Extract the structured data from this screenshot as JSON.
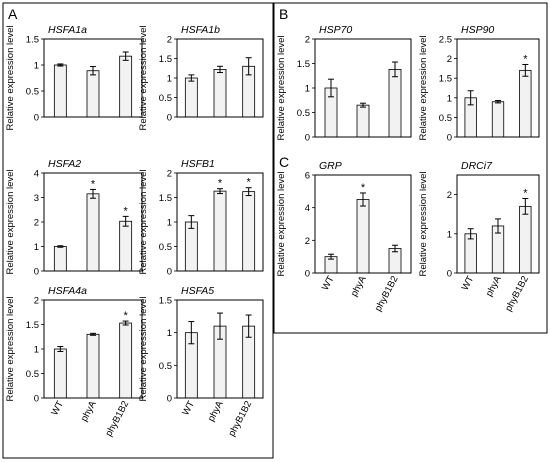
{
  "figure": {
    "panel_labels": [
      "A",
      "B",
      "C"
    ]
  },
  "chart_data": [
    {
      "type": "bar",
      "title": "HSFA1a",
      "ylabel": "Relative expression level",
      "categories": [
        "WT",
        "phyA",
        "phyB1B2"
      ],
      "values": [
        1.0,
        0.89,
        1.17
      ],
      "errors": [
        0.02,
        0.08,
        0.08
      ],
      "significance": [
        "",
        "",
        ""
      ],
      "ylim": [
        0,
        1.5
      ],
      "yticks": [
        "0",
        "0.5",
        "1",
        "1.5"
      ],
      "show_xlabels": false
    },
    {
      "type": "bar",
      "title": "HSFA1b",
      "ylabel": "Relative expression level",
      "categories": [
        "WT",
        "phyA",
        "phyB1B2"
      ],
      "values": [
        1.0,
        1.22,
        1.3
      ],
      "errors": [
        0.08,
        0.08,
        0.22
      ],
      "significance": [
        "",
        "",
        ""
      ],
      "ylim": [
        0,
        2
      ],
      "yticks": [
        "0",
        "0.5",
        "1",
        "1.5",
        "2"
      ],
      "show_xlabels": false
    },
    {
      "type": "bar",
      "title": "HSFA2",
      "ylabel": "Relative expression level",
      "categories": [
        "WT",
        "phyA",
        "phyB1B2"
      ],
      "values": [
        1.0,
        3.15,
        2.03
      ],
      "errors": [
        0.03,
        0.18,
        0.2
      ],
      "significance": [
        "",
        "*",
        "*"
      ],
      "ylim": [
        0,
        4
      ],
      "yticks": [
        "0",
        "1",
        "2",
        "3",
        "4"
      ],
      "show_xlabels": false
    },
    {
      "type": "bar",
      "title": "HSFB1",
      "ylabel": "Relative expression level",
      "categories": [
        "WT",
        "phyA",
        "phyB1B2"
      ],
      "values": [
        1.0,
        1.63,
        1.62
      ],
      "errors": [
        0.13,
        0.05,
        0.08
      ],
      "significance": [
        "",
        "*",
        "*"
      ],
      "ylim": [
        0,
        2
      ],
      "yticks": [
        "0",
        "0.5",
        "1",
        "1.5",
        "2"
      ],
      "show_xlabels": false
    },
    {
      "type": "bar",
      "title": "HSFA4a",
      "ylabel": "Relative expression level",
      "categories": [
        "WT",
        "phyA",
        "phyB1B2"
      ],
      "values": [
        1.0,
        1.3,
        1.53
      ],
      "errors": [
        0.05,
        0.02,
        0.04
      ],
      "significance": [
        "",
        "",
        "*"
      ],
      "ylim": [
        0,
        2
      ],
      "yticks": [
        "0",
        "0.5",
        "1",
        "1.5",
        "2"
      ],
      "show_xlabels": true
    },
    {
      "type": "bar",
      "title": "HSFA5",
      "ylabel": "Relative expression level",
      "categories": [
        "WT",
        "phyA",
        "phyB1B2"
      ],
      "values": [
        1.0,
        1.1,
        1.1
      ],
      "errors": [
        0.17,
        0.2,
        0.17
      ],
      "significance": [
        "",
        "",
        ""
      ],
      "ylim": [
        0,
        1.5
      ],
      "yticks": [
        "0",
        "0.5",
        "1",
        "1.5"
      ],
      "show_xlabels": true
    },
    {
      "type": "bar",
      "title": "HSP70",
      "ylabel": "Relative expression level",
      "categories": [
        "WT",
        "phyA",
        "phyB1B2"
      ],
      "values": [
        1.0,
        0.65,
        1.38
      ],
      "errors": [
        0.18,
        0.04,
        0.15
      ],
      "significance": [
        "",
        "",
        ""
      ],
      "ylim": [
        0,
        2
      ],
      "yticks": [
        "0",
        "0.5",
        "1",
        "1.5",
        "2"
      ],
      "show_xlabels": false
    },
    {
      "type": "bar",
      "title": "HSP90",
      "ylabel": "Relative expression level",
      "categories": [
        "WT",
        "phyA",
        "phyB1B2"
      ],
      "values": [
        1.0,
        0.9,
        1.7
      ],
      "errors": [
        0.18,
        0.03,
        0.15
      ],
      "significance": [
        "",
        "",
        "*"
      ],
      "ylim": [
        0,
        2.5
      ],
      "yticks": [
        "0",
        "0.5",
        "1",
        "1.5",
        "2",
        "2.5"
      ],
      "show_xlabels": false
    },
    {
      "type": "bar",
      "title": "GRP",
      "ylabel": "Relative expression level",
      "categories": [
        "WT",
        "phyA",
        "phyB1B2"
      ],
      "values": [
        1.0,
        4.5,
        1.5
      ],
      "errors": [
        0.15,
        0.4,
        0.2
      ],
      "significance": [
        "",
        "*",
        ""
      ],
      "ylim": [
        0,
        6
      ],
      "yticks": [
        "0",
        "2",
        "4",
        "6"
      ],
      "show_xlabels": true
    },
    {
      "type": "bar",
      "title": "DRCi7",
      "ylabel": "Relative expression level",
      "categories": [
        "WT",
        "phyA",
        "phyB1B2"
      ],
      "values": [
        1.0,
        1.2,
        1.7
      ],
      "errors": [
        0.13,
        0.18,
        0.2
      ],
      "significance": [
        "",
        "",
        "*"
      ],
      "ylim": [
        0,
        2.5
      ],
      "yticks": [
        "0",
        "1",
        "2"
      ],
      "show_xlabels": true
    }
  ]
}
